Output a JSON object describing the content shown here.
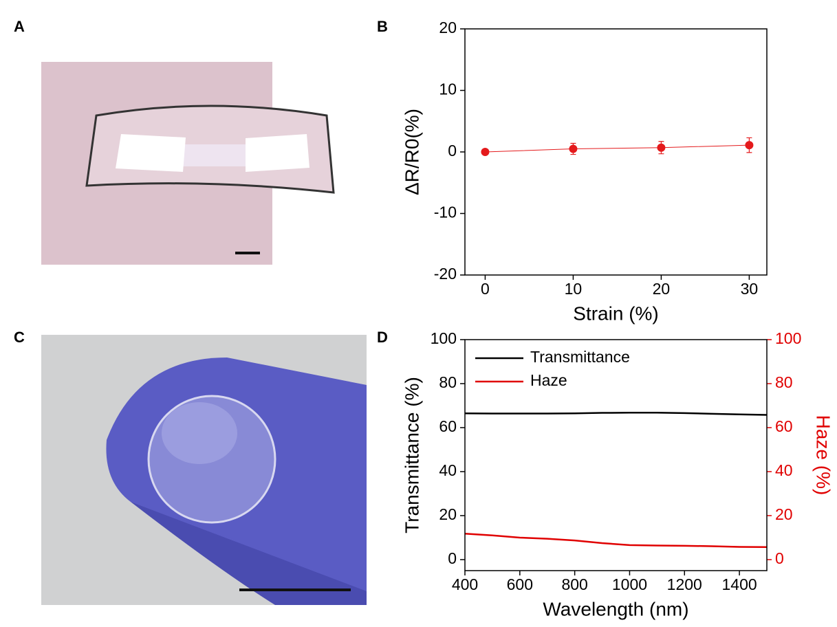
{
  "panel_labels": [
    "A",
    "B",
    "C",
    "D"
  ],
  "chart_data": [
    {
      "type": "line",
      "xlabel": "Strain (%)",
      "ylabel": "ΔR/R0(%)",
      "x": [
        0,
        10,
        20,
        30
      ],
      "series": [
        {
          "color": "#e41a1c",
          "markers": true,
          "values": [
            0,
            0.5,
            0.7,
            1.1
          ],
          "errors": [
            0.3,
            0.9,
            1.0,
            1.2
          ]
        }
      ],
      "xlim": [
        -2.3,
        32
      ],
      "xticks": [
        0,
        10,
        20,
        30
      ],
      "ylim": [
        -20,
        20
      ],
      "yticks": [
        -20,
        -10,
        0,
        10,
        20
      ]
    },
    {
      "type": "line",
      "xlabel": "Wavelength (nm)",
      "ylabel": "Transmittance (%)",
      "y2label": "Haze (%)",
      "x": [
        400,
        500,
        600,
        700,
        800,
        900,
        1000,
        1100,
        1200,
        1300,
        1400,
        1500
      ],
      "series": [
        {
          "name": "Transmittance",
          "color": "#000000",
          "values": [
            66.5,
            66.4,
            66.4,
            66.4,
            66.5,
            66.7,
            66.8,
            66.8,
            66.6,
            66.3,
            66.0,
            65.8
          ]
        },
        {
          "name": "Haze",
          "color": "#e00000",
          "axis": "y2",
          "values": [
            11.8,
            11.0,
            10.0,
            9.5,
            8.7,
            7.5,
            6.6,
            6.4,
            6.3,
            6.1,
            5.8,
            5.7
          ]
        }
      ],
      "xlim": [
        400,
        1500
      ],
      "xticks": [
        400,
        600,
        800,
        1000,
        1200,
        1400
      ],
      "ylim": [
        -5,
        100
      ],
      "yticks": [
        0,
        20,
        40,
        60,
        80,
        100
      ],
      "y2lim": [
        -5,
        100
      ],
      "y2ticks": [
        0,
        20,
        40,
        60,
        80,
        100
      ],
      "legend": "upper left"
    }
  ]
}
